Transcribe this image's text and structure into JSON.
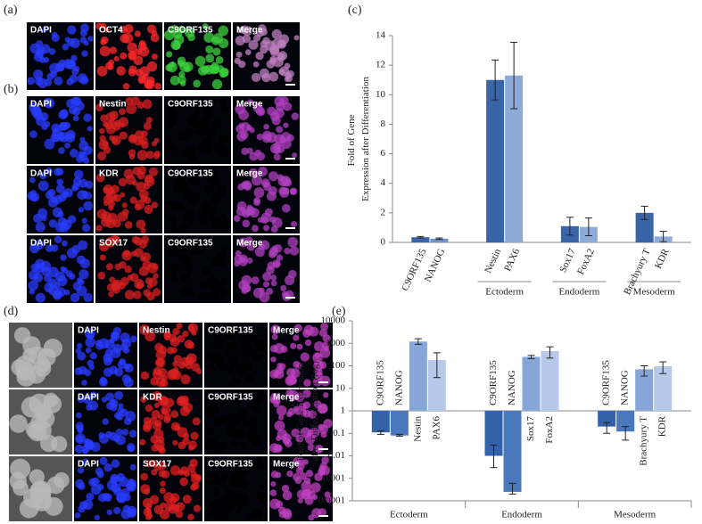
{
  "panels": [
    {
      "label": "(a)",
      "rows": [
        [
          "DAPI",
          "OCT4",
          "C9ORF135",
          "Merge"
        ]
      ],
      "colors": [
        "#2a3cff",
        "#ff2a2a",
        "#3cd23c",
        "#c080c0"
      ]
    },
    {
      "label": "(b)",
      "rows": [
        [
          "DAPI",
          "Nestin",
          "C9ORF135",
          "Merge"
        ],
        [
          "DAPI",
          "KDR",
          "C9ORF135",
          "Merge"
        ],
        [
          "DAPI",
          "SOX17",
          "C9ORF135",
          "Merge"
        ]
      ],
      "colors": [
        "#2a3cff",
        "#d82020",
        "#000000",
        "#b040c0"
      ]
    },
    {
      "label": "(d)",
      "rows": [
        [
          "DAPI",
          "Nestin",
          "C9ORF135",
          "Merge"
        ],
        [
          "DAPI",
          "KDR",
          "C9ORF135",
          "Merge"
        ],
        [
          "DAPI",
          "SOX17",
          "C9ORF135",
          "Merge"
        ]
      ],
      "colors": [
        "#b8b8b8",
        "#2a3cff",
        "#e02020",
        "#000000",
        "#c040c0"
      ]
    }
  ],
  "chart_data": [
    {
      "type": "bar",
      "panel_label": "(c)",
      "y_label": "Fold of Gene Expression after Differentiation",
      "categories": [
        "C9ORF135",
        "NANOG",
        "Nestin",
        "PAX6",
        "Sox17",
        "FoxA2",
        "Brachyury T",
        "KDR"
      ],
      "values": [
        0.35,
        0.25,
        11,
        11.3,
        1.1,
        1.05,
        2.0,
        0.4
      ],
      "errors": [
        0.05,
        0.05,
        1.35,
        2.25,
        0.6,
        0.6,
        0.45,
        0.35
      ],
      "colors": [
        "#3a64a8",
        "#6f93cc",
        "#3a64a8",
        "#8eaad8",
        "#3a64a8",
        "#8eaad8",
        "#3a64a8",
        "#8eaad8"
      ],
      "group_labels": [
        null,
        "Ectoderm",
        "Endoderm",
        "Mesoderm"
      ],
      "ylim": [
        0,
        14
      ],
      "yticks": [
        0,
        2,
        4,
        6,
        8,
        10,
        12,
        14
      ],
      "log_scale": false,
      "baseline": 0
    },
    {
      "type": "bar",
      "panel_label": "(e)",
      "y_label": "Fold of Gene Expression after Differentiation (log)",
      "categories": [
        "C9ORF135",
        "NANOG",
        "Nestin",
        "PAX6",
        "C9ORF135",
        "NANOG",
        "Sox17",
        "FoxA2",
        "C9ORF135",
        "NANOG",
        "Brachyury T",
        "KDR"
      ],
      "values": [
        0.11,
        0.08,
        1200,
        180,
        0.01,
        0.00025,
        250,
        450,
        0.2,
        0.12,
        70,
        95
      ],
      "error_ranges": [
        [
          0.09,
          0.13
        ],
        [
          0.075,
          0.09
        ],
        [
          900,
          1600
        ],
        [
          30,
          380
        ],
        [
          0.003,
          0.03
        ],
        [
          0.0002,
          0.0006
        ],
        [
          210,
          290
        ],
        [
          220,
          700
        ],
        [
          0.1,
          0.3
        ],
        [
          0.05,
          0.2
        ],
        [
          35,
          100
        ],
        [
          45,
          150
        ]
      ],
      "colors": [
        "#3362a8",
        "#4a78bc",
        "#86a6d8",
        "#b6c9e9",
        "#3362a8",
        "#4a78bc",
        "#86a6d8",
        "#b6c9e9",
        "#3362a8",
        "#4a78bc",
        "#86a6d8",
        "#b6c9e9"
      ],
      "group_labels": [
        "Ectoderm",
        "Endoderm",
        "Mesoderm"
      ],
      "ylim": [
        0.0001,
        10000
      ],
      "yticks": [
        0.0001,
        0.001,
        0.01,
        0.1,
        1,
        10,
        100,
        1000,
        10000
      ],
      "log_scale": true,
      "baseline": 1
    }
  ]
}
